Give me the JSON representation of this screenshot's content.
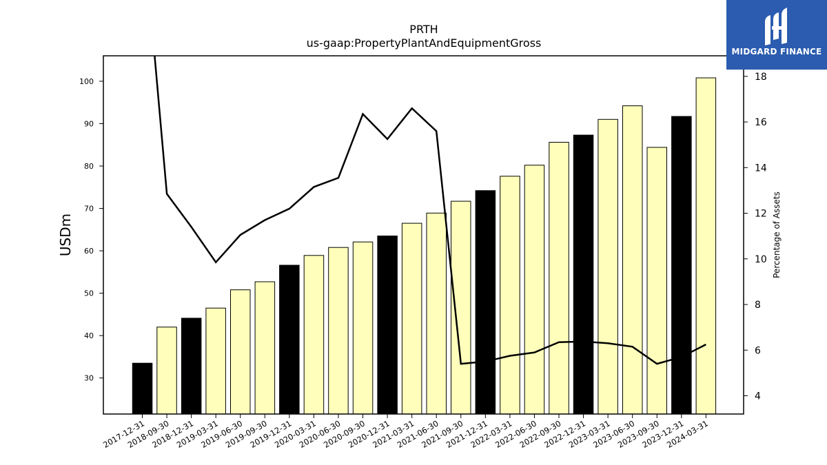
{
  "chart_data": {
    "type": "bar",
    "title": "PRTH",
    "subtitle": "us-gaap:PropertyPlantAndEquipmentGross",
    "ylabel": "USDm",
    "ylabel_right": "Percentage of Assets",
    "ylim": [
      21.5,
      106
    ],
    "ylim_right": [
      3.2,
      18.9
    ],
    "yticks": [
      30,
      40,
      50,
      60,
      70,
      80,
      90,
      100
    ],
    "yticks_right": [
      4,
      6,
      8,
      10,
      12,
      14,
      16,
      18
    ],
    "categories": [
      "2017-12-31",
      "2018-09-30",
      "2018-12-31",
      "2019-03-31",
      "2019-06-30",
      "2019-09-30",
      "2019-12-31",
      "2020-03-31",
      "2020-06-30",
      "2020-09-30",
      "2020-12-31",
      "2021-03-31",
      "2021-06-30",
      "2021-09-30",
      "2021-12-31",
      "2022-03-31",
      "2022-06-30",
      "2022-09-30",
      "2022-12-31",
      "2023-03-31",
      "2023-06-30",
      "2023-09-30",
      "2023-12-31",
      "2024-03-31"
    ],
    "series": [
      {
        "type": "bar",
        "values": [
          33.5,
          42.0,
          44.1,
          46.5,
          50.8,
          52.7,
          56.6,
          58.9,
          60.8,
          62.1,
          63.5,
          66.5,
          68.9,
          71.7,
          74.2,
          77.6,
          80.2,
          85.6,
          87.3,
          91.0,
          94.2,
          84.4,
          91.7,
          100.8
        ],
        "fiscal_year_end": [
          true,
          false,
          true,
          false,
          false,
          false,
          true,
          false,
          false,
          false,
          true,
          false,
          false,
          false,
          true,
          false,
          false,
          false,
          true,
          false,
          false,
          false,
          true,
          false
        ],
        "color_fy": "#000000",
        "color_quarter": "#ffffbb"
      },
      {
        "type": "line",
        "axis": "right",
        "color": "#000000",
        "values": [
          25.0,
          12.85,
          11.4,
          9.85,
          11.05,
          11.7,
          12.2,
          13.15,
          13.55,
          16.35,
          15.25,
          16.6,
          15.6,
          5.4,
          5.5,
          5.75,
          5.9,
          6.35,
          6.38,
          6.3,
          6.15,
          5.4,
          5.7,
          6.25
        ]
      }
    ]
  },
  "logo": {
    "text": "MIDGARD FINANCE",
    "bg": "#2b5caf",
    "icon": "midgard-logo-icon"
  }
}
